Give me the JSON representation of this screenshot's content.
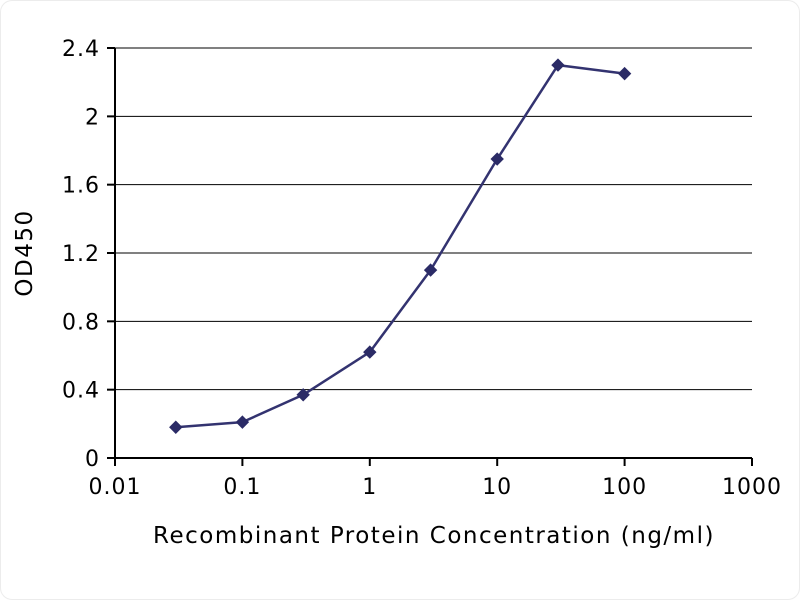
{
  "chart_data": {
    "type": "line",
    "x": [
      0.03,
      0.1,
      0.3,
      1,
      3,
      10,
      30,
      100
    ],
    "y": [
      0.18,
      0.21,
      0.37,
      0.62,
      1.1,
      1.75,
      2.3,
      2.25
    ],
    "xlabel": "Recombinant Protein Concentration (ng/ml)",
    "ylabel": "OD450",
    "x_scale": "log",
    "xlim": [
      0.01,
      1000
    ],
    "ylim": [
      0,
      2.4
    ],
    "x_ticks": [
      0.01,
      0.1,
      1,
      10,
      100,
      1000
    ],
    "x_tick_labels": [
      "0.01",
      "0.1",
      "1",
      "10",
      "100",
      "1000"
    ],
    "y_ticks": [
      0,
      0.4,
      0.8,
      1.2,
      1.6,
      2,
      2.4
    ],
    "y_tick_labels": [
      "0",
      "0.4",
      "0.8",
      "1.2",
      "1.6",
      "2",
      "2.4"
    ],
    "grid": "horizontal",
    "legend": "none",
    "line_color": "#333370",
    "marker": "diamond",
    "marker_color": "#2b2b66",
    "axis_color": "#000000",
    "background_color": "#ffffff"
  }
}
